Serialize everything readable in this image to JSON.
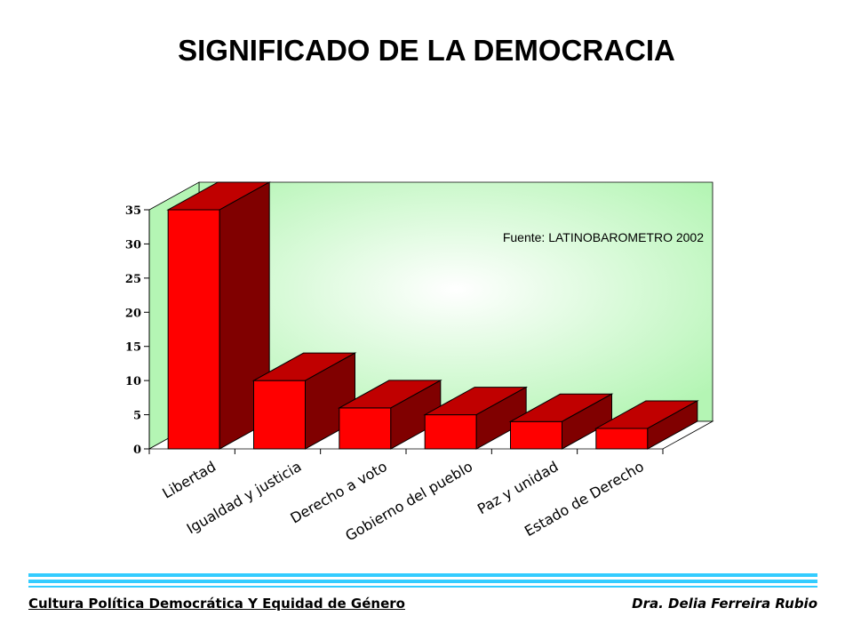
{
  "title": "SIGNIFICADO DE LA DEMOCRACIA",
  "footer": {
    "left": "Cultura Política Democrática Y Equidad de Género",
    "right": "Dra. Delia Ferreira Rubio"
  },
  "colors": {
    "bar_front": "#ff0000",
    "bar_top": "#c00000",
    "bar_side": "#800000",
    "wall": "#b4f5b4",
    "footer_line": "#33ccff"
  },
  "chart_data": {
    "type": "bar",
    "style": "3d",
    "categories": [
      "Libertad",
      "Igualdad y justicia",
      "Derecho a voto",
      "Gobierno del pueblo",
      "Paz y unidad",
      "Estado de Derecho"
    ],
    "values": [
      35,
      10,
      6,
      5,
      4,
      3
    ],
    "ylim": [
      0,
      35
    ],
    "yticks": [
      0,
      5,
      10,
      15,
      20,
      25,
      30,
      35
    ],
    "annotation": "Fuente: LATINOBAROMETRO 2002",
    "grid": false,
    "legend": "none"
  }
}
